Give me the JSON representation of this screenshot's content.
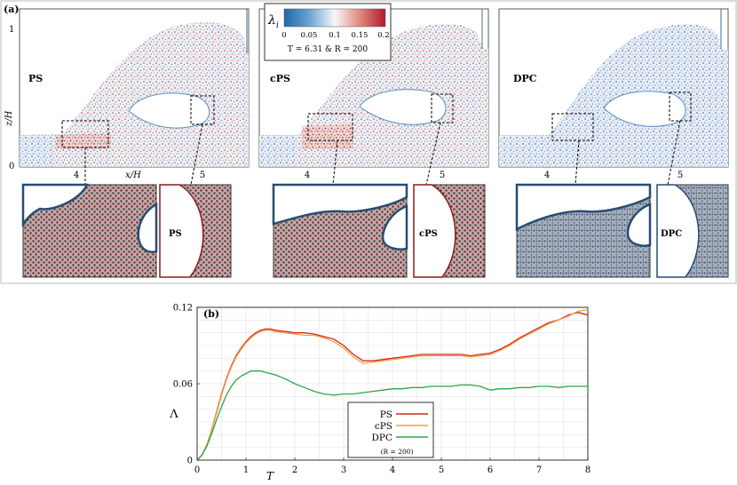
{
  "panel_a": {
    "label": "(a)",
    "xlabel": "x/H",
    "ylabel": "z/H",
    "x_ticks": [
      "4",
      "5"
    ],
    "y_ticks": [
      "0",
      "1"
    ],
    "colorbar": {
      "symbol": "λ",
      "subscript": "i",
      "ticks": [
        "0",
        "0.05",
        "0.1",
        "0.15",
        "0.2"
      ],
      "caption": "T = 6.31 & R = 200",
      "color_low": "#2166ac",
      "color_mid": "#f7f7f7",
      "color_high": "#b2182b"
    },
    "subpanels": [
      {
        "method": "PS",
        "zoom_label": "PS"
      },
      {
        "method": "cPS",
        "zoom_label": "cPS"
      },
      {
        "method": "DPC",
        "zoom_label": "DPC"
      }
    ]
  },
  "chart_data": {
    "type": "line",
    "panel_label": "(b)",
    "title": "",
    "xlabel": "T",
    "ylabel": "Λ",
    "xlim": [
      0,
      8
    ],
    "ylim": [
      0,
      0.12
    ],
    "x_ticks": [
      "0",
      "1",
      "2",
      "3",
      "4",
      "5",
      "6",
      "7",
      "8"
    ],
    "y_ticks": [
      "0",
      "0.06",
      "0.12"
    ],
    "grid": true,
    "legend_position": "bottom-center",
    "legend_note": "(R = 200)",
    "x": [
      0,
      0.1,
      0.2,
      0.3,
      0.4,
      0.5,
      0.6,
      0.7,
      0.8,
      0.9,
      1.0,
      1.1,
      1.2,
      1.3,
      1.4,
      1.5,
      1.6,
      1.8,
      2.0,
      2.2,
      2.4,
      2.6,
      2.8,
      3.0,
      3.2,
      3.4,
      3.6,
      3.8,
      4.0,
      4.2,
      4.4,
      4.6,
      4.8,
      5.0,
      5.2,
      5.4,
      5.6,
      5.8,
      6.0,
      6.2,
      6.4,
      6.6,
      6.8,
      7.0,
      7.2,
      7.4,
      7.6,
      7.8,
      8.0
    ],
    "series": [
      {
        "name": "PS",
        "color": "#d62718",
        "values": [
          0,
          0.004,
          0.012,
          0.024,
          0.038,
          0.052,
          0.064,
          0.074,
          0.082,
          0.088,
          0.093,
          0.097,
          0.1,
          0.102,
          0.103,
          0.103,
          0.102,
          0.101,
          0.1,
          0.1,
          0.099,
          0.097,
          0.095,
          0.09,
          0.083,
          0.078,
          0.078,
          0.079,
          0.08,
          0.081,
          0.082,
          0.083,
          0.083,
          0.083,
          0.083,
          0.083,
          0.082,
          0.083,
          0.084,
          0.087,
          0.091,
          0.096,
          0.1,
          0.104,
          0.108,
          0.11,
          0.114,
          0.116,
          0.114
        ]
      },
      {
        "name": "cPS",
        "color": "#f3a14a",
        "values": [
          0,
          0.004,
          0.012,
          0.024,
          0.037,
          0.051,
          0.063,
          0.073,
          0.081,
          0.087,
          0.092,
          0.096,
          0.099,
          0.101,
          0.102,
          0.102,
          0.101,
          0.1,
          0.099,
          0.098,
          0.098,
          0.096,
          0.093,
          0.088,
          0.081,
          0.076,
          0.077,
          0.078,
          0.079,
          0.08,
          0.081,
          0.082,
          0.082,
          0.082,
          0.082,
          0.082,
          0.081,
          0.082,
          0.083,
          0.086,
          0.09,
          0.095,
          0.099,
          0.103,
          0.107,
          0.11,
          0.113,
          0.117,
          0.118
        ]
      },
      {
        "name": "DPC",
        "color": "#25a84a",
        "values": [
          0,
          0.004,
          0.011,
          0.021,
          0.032,
          0.042,
          0.051,
          0.058,
          0.063,
          0.066,
          0.068,
          0.07,
          0.07,
          0.07,
          0.069,
          0.068,
          0.067,
          0.064,
          0.06,
          0.057,
          0.054,
          0.052,
          0.051,
          0.052,
          0.052,
          0.053,
          0.054,
          0.055,
          0.056,
          0.056,
          0.057,
          0.057,
          0.058,
          0.058,
          0.058,
          0.059,
          0.059,
          0.058,
          0.055,
          0.056,
          0.056,
          0.057,
          0.057,
          0.058,
          0.058,
          0.057,
          0.058,
          0.058,
          0.058
        ]
      }
    ]
  }
}
